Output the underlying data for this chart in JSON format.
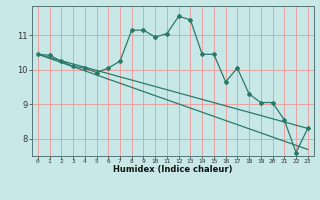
{
  "title": "",
  "xlabel": "Humidex (Indice chaleur)",
  "ylabel": "",
  "background_color": "#c8e8e8",
  "plot_bg_color": "#c8e8e8",
  "grid_color": "#e8a0a0",
  "line_color": "#2a7a6a",
  "x_values": [
    0,
    1,
    2,
    3,
    4,
    5,
    6,
    7,
    8,
    9,
    10,
    11,
    12,
    13,
    14,
    15,
    16,
    17,
    18,
    19,
    20,
    21,
    22,
    23
  ],
  "y_main": [
    10.45,
    10.42,
    10.25,
    10.1,
    10.05,
    9.92,
    10.05,
    10.25,
    11.15,
    11.15,
    10.95,
    11.05,
    11.55,
    11.45,
    10.45,
    10.45,
    9.65,
    10.05,
    9.3,
    9.05,
    9.05,
    8.55,
    7.6,
    8.3
  ],
  "y_regression": [
    10.45,
    10.33,
    10.21,
    10.09,
    9.97,
    9.85,
    9.73,
    9.61,
    9.49,
    9.37,
    9.25,
    9.13,
    9.01,
    8.89,
    8.77,
    8.65,
    8.53,
    8.41,
    8.29,
    8.17,
    8.05,
    7.93,
    7.81,
    7.69
  ],
  "ylim": [
    7.5,
    11.85
  ],
  "xlim": [
    -0.5,
    23.5
  ],
  "yticks": [
    8,
    9,
    10,
    11
  ],
  "xticks": [
    0,
    1,
    2,
    3,
    4,
    5,
    6,
    7,
    8,
    9,
    10,
    11,
    12,
    13,
    14,
    15,
    16,
    17,
    18,
    19,
    20,
    21,
    22,
    23
  ]
}
